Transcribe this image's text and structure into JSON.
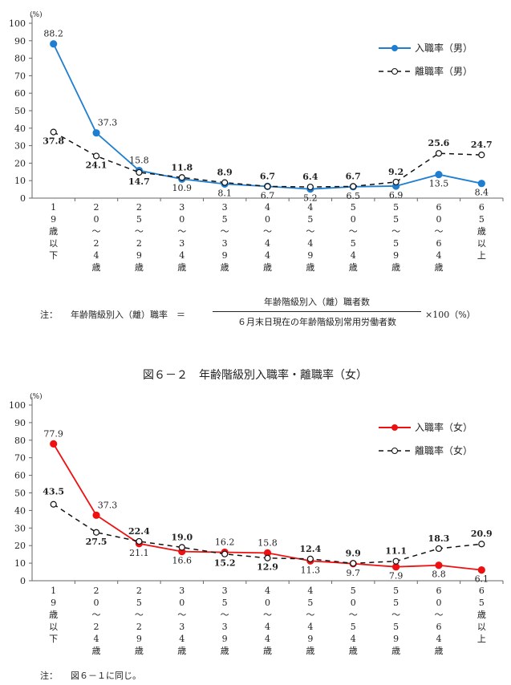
{
  "chart_data": [
    {
      "type": "line",
      "title": "",
      "unit": "(%)",
      "ylim": [
        0,
        100
      ],
      "yticks": [
        0,
        10,
        20,
        30,
        40,
        50,
        60,
        70,
        80,
        90,
        100
      ],
      "categories": [
        "19歳以下",
        "20~24歳",
        "25~29歳",
        "30~34歳",
        "35~39歳",
        "40~44歳",
        "45~49歳",
        "50~54歳",
        "55~59歳",
        "60~64歳",
        "65歳以上"
      ],
      "legend_position": "top-right",
      "series": [
        {
          "name": "入職率（男）",
          "color": "#1f7ed0",
          "style": "solid",
          "marker": "filled-circle",
          "values": [
            88.2,
            37.3,
            15.8,
            10.9,
            8.1,
            6.7,
            5.2,
            6.5,
            6.9,
            13.5,
            8.4
          ]
        },
        {
          "name": "離職率（男）",
          "color": "#111111",
          "style": "dashed",
          "marker": "open-circle",
          "values": [
            37.8,
            24.1,
            14.7,
            11.8,
            8.9,
            6.7,
            6.4,
            6.7,
            9.2,
            25.6,
            24.7
          ]
        }
      ]
    },
    {
      "type": "line",
      "title": "図６－２　年齢階級別入職率・離職率（女）",
      "unit": "(%)",
      "ylim": [
        0,
        100
      ],
      "yticks": [
        0,
        10,
        20,
        30,
        40,
        50,
        60,
        70,
        80,
        90,
        100
      ],
      "categories": [
        "19歳以下",
        "20~24歳",
        "25~29歳",
        "30~34歳",
        "35~39歳",
        "40~44歳",
        "45~49歳",
        "50~54歳",
        "55~59歳",
        "60~64歳",
        "65歳以上"
      ],
      "legend_position": "top-right",
      "series": [
        {
          "name": "入職率（女）",
          "color": "#ee1111",
          "style": "solid",
          "marker": "filled-circle",
          "values": [
            77.9,
            37.3,
            21.1,
            16.6,
            16.2,
            15.8,
            11.3,
            9.7,
            7.9,
            8.8,
            6.1
          ]
        },
        {
          "name": "離職率（女）",
          "color": "#111111",
          "style": "dashed",
          "marker": "open-circle",
          "values": [
            43.5,
            27.5,
            22.4,
            19.0,
            15.2,
            12.9,
            12.4,
            9.9,
            11.1,
            18.3,
            20.9
          ]
        }
      ]
    }
  ],
  "notes": {
    "note1_label": "注：",
    "note1_lhs": "年齢階級別入（離）職率　＝",
    "note1_numerator": "年齢階級別入（離）職者数",
    "note1_denominator": "６月末日現在の年齢階級別常用労働者数",
    "note1_tail": "×100（%）",
    "note2_label": "注：",
    "note2_text": "図６－１に同じ。"
  }
}
